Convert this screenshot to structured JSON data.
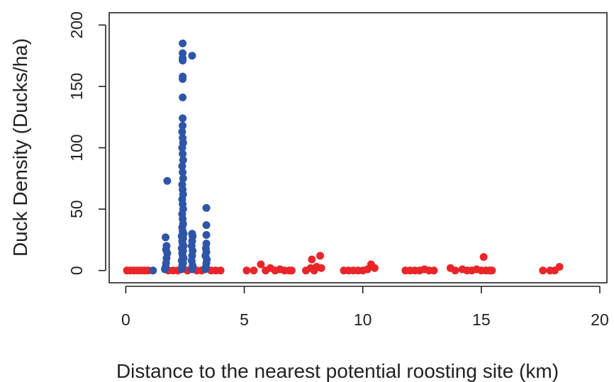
{
  "chart_data": {
    "type": "scatter",
    "title": "",
    "xlabel": "Distance to the nearest potential roosting site (km)",
    "ylabel": "Duck Density (Ducks/ha)",
    "xlim": [
      -0.7,
      20.3
    ],
    "ylim": [
      -10,
      210
    ],
    "x_ticks": [
      0,
      5,
      10,
      15,
      20
    ],
    "y_ticks": [
      0,
      50,
      100,
      150,
      200
    ],
    "x_tick_labels": [
      "0",
      "5",
      "10",
      "15",
      "20"
    ],
    "y_tick_labels": [
      "0",
      "50",
      "100",
      "150",
      "200"
    ],
    "grid": false,
    "legend": "none",
    "series": [
      {
        "color": "#e8262a",
        "points": [
          [
            0.05,
            0
          ],
          [
            0.2,
            0
          ],
          [
            0.35,
            0
          ],
          [
            0.5,
            0
          ],
          [
            0.65,
            0
          ],
          [
            0.8,
            0
          ],
          [
            0.95,
            0
          ],
          [
            1.8,
            0
          ],
          [
            2.0,
            0
          ],
          [
            2.2,
            0
          ],
          [
            2.6,
            0
          ],
          [
            3.0,
            0
          ],
          [
            3.2,
            0
          ],
          [
            3.6,
            0
          ],
          [
            3.8,
            0
          ],
          [
            4.0,
            0
          ],
          [
            5.1,
            0
          ],
          [
            5.4,
            0
          ],
          [
            5.7,
            5
          ],
          [
            5.9,
            0
          ],
          [
            6.1,
            2
          ],
          [
            6.3,
            0
          ],
          [
            6.5,
            1
          ],
          [
            6.7,
            0
          ],
          [
            6.9,
            0
          ],
          [
            7.0,
            0
          ],
          [
            7.6,
            0
          ],
          [
            7.8,
            2
          ],
          [
            7.85,
            9
          ],
          [
            7.95,
            0
          ],
          [
            8.05,
            3
          ],
          [
            8.2,
            12
          ],
          [
            8.25,
            2
          ],
          [
            9.2,
            0
          ],
          [
            9.4,
            0
          ],
          [
            9.6,
            0
          ],
          [
            9.8,
            0
          ],
          [
            10.0,
            0
          ],
          [
            10.2,
            1
          ],
          [
            10.35,
            5
          ],
          [
            10.5,
            2
          ],
          [
            11.8,
            0
          ],
          [
            12.0,
            0
          ],
          [
            12.2,
            0
          ],
          [
            12.4,
            0
          ],
          [
            12.6,
            1
          ],
          [
            12.8,
            0
          ],
          [
            13.0,
            0
          ],
          [
            13.7,
            2
          ],
          [
            13.9,
            0
          ],
          [
            14.2,
            1
          ],
          [
            14.4,
            0
          ],
          [
            14.6,
            0
          ],
          [
            14.8,
            1
          ],
          [
            15.0,
            0
          ],
          [
            15.1,
            11
          ],
          [
            15.2,
            0
          ],
          [
            15.35,
            0
          ],
          [
            15.45,
            0
          ],
          [
            17.6,
            0
          ],
          [
            17.9,
            0
          ],
          [
            18.1,
            0
          ],
          [
            18.3,
            3
          ]
        ]
      },
      {
        "color": "#2f55a6",
        "points": [
          [
            1.15,
            0
          ],
          [
            1.65,
            1
          ],
          [
            1.68,
            3
          ],
          [
            1.7,
            6
          ],
          [
            1.72,
            10
          ],
          [
            1.75,
            14
          ],
          [
            1.7,
            17
          ],
          [
            1.72,
            20
          ],
          [
            1.68,
            27
          ],
          [
            1.75,
            73
          ],
          [
            2.35,
            1
          ],
          [
            2.4,
            2
          ],
          [
            2.38,
            4
          ],
          [
            2.42,
            6
          ],
          [
            2.36,
            8
          ],
          [
            2.44,
            10
          ],
          [
            2.4,
            12
          ],
          [
            2.38,
            14
          ],
          [
            2.42,
            16
          ],
          [
            2.36,
            18
          ],
          [
            2.44,
            20
          ],
          [
            2.4,
            22
          ],
          [
            2.38,
            24
          ],
          [
            2.42,
            26
          ],
          [
            2.36,
            28
          ],
          [
            2.44,
            30
          ],
          [
            2.4,
            32
          ],
          [
            2.38,
            35
          ],
          [
            2.42,
            38
          ],
          [
            2.4,
            42
          ],
          [
            2.38,
            46
          ],
          [
            2.42,
            50
          ],
          [
            2.4,
            54
          ],
          [
            2.38,
            58
          ],
          [
            2.42,
            62
          ],
          [
            2.4,
            66
          ],
          [
            2.38,
            70
          ],
          [
            2.42,
            75
          ],
          [
            2.4,
            80
          ],
          [
            2.38,
            85
          ],
          [
            2.42,
            90
          ],
          [
            2.4,
            95
          ],
          [
            2.38,
            100
          ],
          [
            2.42,
            104
          ],
          [
            2.4,
            108
          ],
          [
            2.38,
            113
          ],
          [
            2.4,
            118
          ],
          [
            2.4,
            124
          ],
          [
            2.4,
            141
          ],
          [
            2.4,
            156
          ],
          [
            2.4,
            158
          ],
          [
            2.4,
            171
          ],
          [
            2.4,
            173
          ],
          [
            2.4,
            177
          ],
          [
            2.4,
            185
          ],
          [
            2.8,
            175
          ],
          [
            2.8,
            1
          ],
          [
            2.82,
            4
          ],
          [
            2.78,
            8
          ],
          [
            2.8,
            12
          ],
          [
            2.82,
            16
          ],
          [
            2.78,
            20
          ],
          [
            2.8,
            24
          ],
          [
            2.82,
            28
          ],
          [
            2.8,
            30
          ],
          [
            3.35,
            1
          ],
          [
            3.38,
            3
          ],
          [
            3.4,
            6
          ],
          [
            3.42,
            9
          ],
          [
            3.36,
            12
          ],
          [
            3.4,
            15
          ],
          [
            3.38,
            18
          ],
          [
            3.4,
            22
          ],
          [
            3.4,
            29
          ],
          [
            3.4,
            37
          ],
          [
            3.4,
            51
          ]
        ]
      }
    ]
  }
}
